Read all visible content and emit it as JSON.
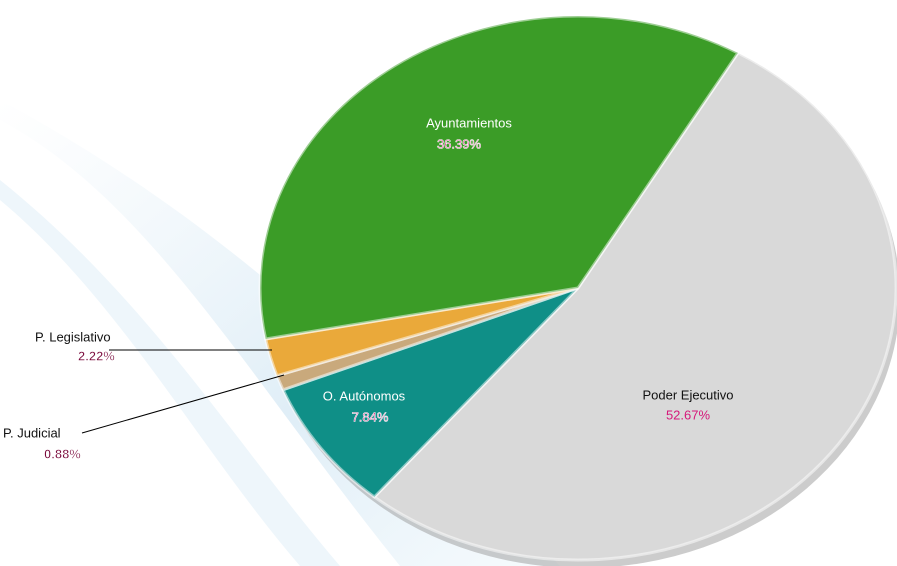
{
  "chart_data": {
    "type": "pie",
    "categories": [
      "Poder Ejecutivo",
      "O. Autónomos",
      "P. Judicial",
      "P. Legislativo",
      "Ayuntamientos"
    ],
    "values": [
      52.67,
      7.84,
      0.88,
      2.22,
      36.39
    ],
    "value_labels": [
      "52.67%",
      "7.84%",
      "0.88%",
      "2.22%",
      "36.39%"
    ],
    "colors": [
      "#d9d9d9",
      "#0f8f87",
      "#c9a97c",
      "#eaa93a",
      "#3b9c27"
    ]
  }
}
